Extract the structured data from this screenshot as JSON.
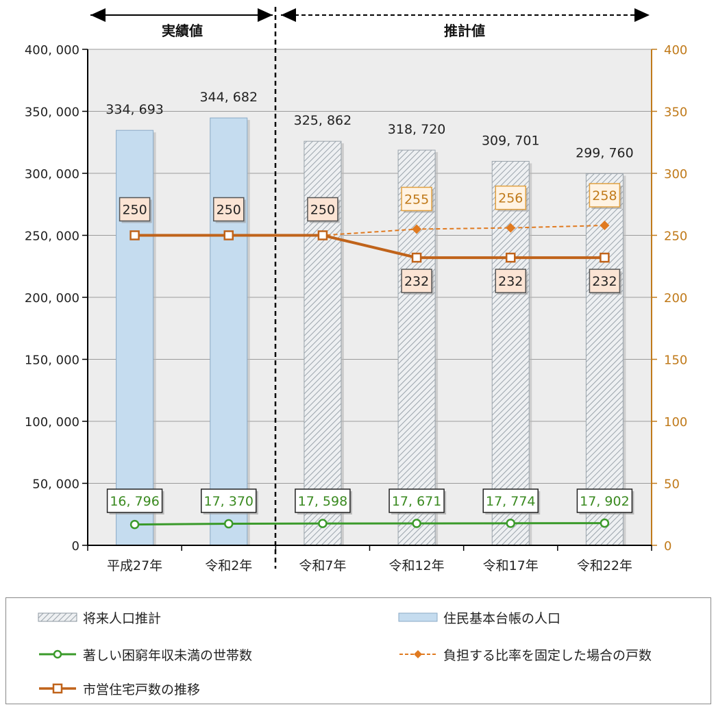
{
  "period_labels": {
    "actual": "実績値",
    "estimate": "推計値"
  },
  "chart_data": {
    "type": "bar",
    "categories": [
      "平成27年",
      "令和2年",
      "令和7年",
      "令和12年",
      "令和17年",
      "令和22年"
    ],
    "left_axis": {
      "ylim": [
        0,
        400000
      ],
      "ticks": [
        "0",
        "50, 000",
        "100, 000",
        "150, 000",
        "200, 000",
        "250, 000",
        "300, 000",
        "350, 000",
        "400, 000"
      ]
    },
    "right_axis": {
      "ylim": [
        0,
        400
      ],
      "ticks": [
        "0",
        "50",
        "100",
        "150",
        "200",
        "250",
        "300",
        "350",
        "400"
      ],
      "color": "#c07a1a"
    },
    "grid": true,
    "series": [
      {
        "name": "住民基本台帳の人口",
        "kind": "bar",
        "axis": "left",
        "color": "#c5dcef",
        "values": [
          334693,
          344682,
          null,
          null,
          null,
          null
        ],
        "labels": [
          "334, 693",
          "344, 682",
          null,
          null,
          null,
          null
        ]
      },
      {
        "name": "将来人口推計",
        "kind": "bar-hatched",
        "axis": "left",
        "color": "#d8dde2",
        "values": [
          null,
          null,
          325862,
          318720,
          309701,
          299760
        ],
        "labels": [
          null,
          null,
          "325, 862",
          "318, 720",
          "309, 701",
          "299, 760"
        ]
      },
      {
        "name": "著しい困窮年収未満の世帯数",
        "kind": "line",
        "axis": "left",
        "color": "#3a9a2a",
        "values": [
          16796,
          17370,
          17598,
          17671,
          17774,
          17902
        ],
        "labels": [
          "16, 796",
          "17, 370",
          "17, 598",
          "17, 671",
          "17, 774",
          "17, 902"
        ]
      },
      {
        "name": "負担する比率を固定した場合の戸数",
        "kind": "line-dashed",
        "axis": "right",
        "color": "#e07a20",
        "values": [
          250,
          250,
          250,
          255,
          256,
          258
        ],
        "labels": [
          null,
          null,
          null,
          "255",
          "256",
          "258"
        ]
      },
      {
        "name": "市営住宅戸数の推移",
        "kind": "line",
        "axis": "right",
        "color": "#c0631a",
        "values": [
          250,
          250,
          250,
          232,
          232,
          232
        ],
        "labels": [
          "250",
          "250",
          "250",
          "232",
          "232",
          "232"
        ]
      }
    ]
  },
  "legend": {
    "items": [
      {
        "label": "将来人口推計",
        "icon": "hatched-bar"
      },
      {
        "label": "住民基本台帳の人口",
        "icon": "blue-bar"
      },
      {
        "label": "著しい困窮年収未満の世帯数",
        "icon": "green-line-circle"
      },
      {
        "label": "負担する比率を固定した場合の戸数",
        "icon": "orange-dashed-diamond"
      },
      {
        "label": "市営住宅戸数の推移",
        "icon": "brown-line-square"
      }
    ]
  }
}
